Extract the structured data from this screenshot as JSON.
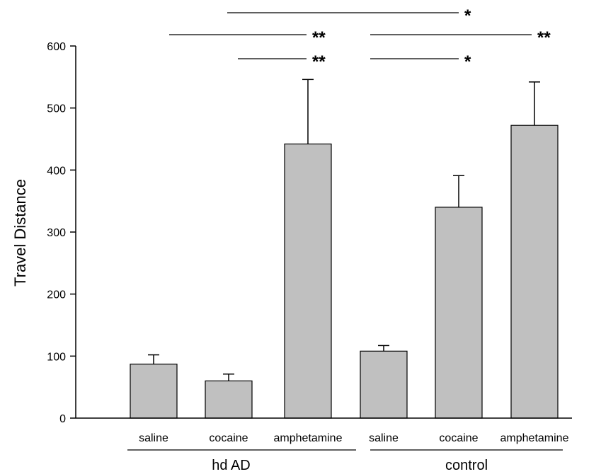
{
  "chart_data": {
    "type": "bar",
    "title": "",
    "xlabel": "",
    "ylabel": "Travel Distance",
    "ylim": [
      0,
      600
    ],
    "yticks": [
      0,
      100,
      200,
      300,
      400,
      500,
      600
    ],
    "grid": false,
    "bar_color": "#c0c0c0",
    "categories": [
      "saline",
      "cocaine",
      "amphetamine",
      "saline",
      "cocaine",
      "amphetamine"
    ],
    "values": [
      87,
      60,
      442,
      108,
      340,
      472
    ],
    "errors": [
      15,
      11,
      104,
      9,
      51,
      70
    ],
    "groups": [
      {
        "label": "hd AD",
        "categories": [
          0,
          1,
          2
        ]
      },
      {
        "label": "control",
        "categories": [
          3,
          4,
          5
        ]
      }
    ],
    "significance": [
      {
        "from": 1,
        "to": 4,
        "label": "*"
      },
      {
        "from": 0,
        "to": 2,
        "label": "**"
      },
      {
        "from": 3,
        "to": 5,
        "label": "**"
      },
      {
        "from": 1,
        "to": 2,
        "label": "**"
      },
      {
        "from": 3,
        "to": 4,
        "label": "*"
      }
    ]
  }
}
